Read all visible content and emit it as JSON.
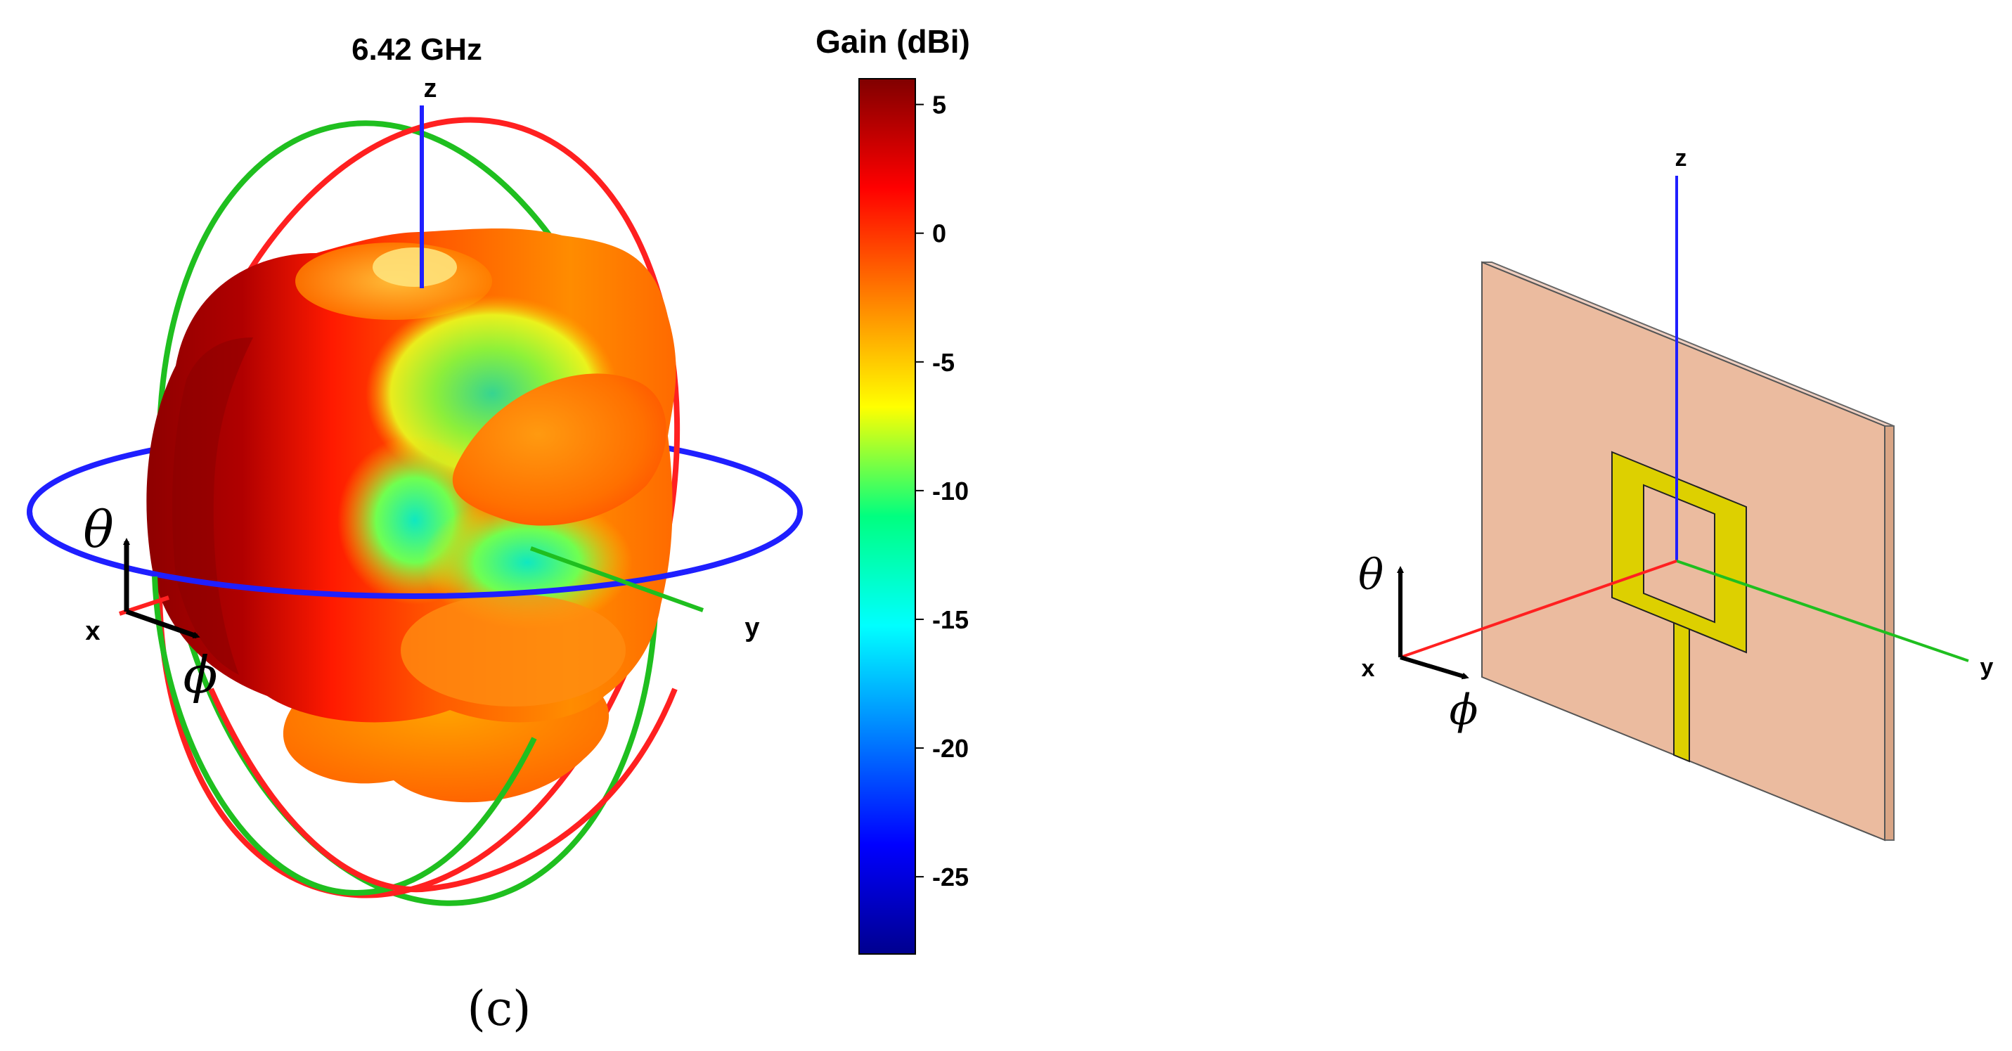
{
  "left_panel": {
    "frequency_label": "6.42 GHz",
    "axis_labels": {
      "x": "x",
      "y": "y",
      "z": "z"
    },
    "theta_symbol": "θ",
    "phi_symbol": "ϕ",
    "panel_label": "(c)",
    "colorbar": {
      "title": "Gain (dBi)",
      "ticks": [
        "5",
        "0",
        "-5",
        "-10",
        "-15",
        "-20",
        "-25"
      ],
      "range": [
        -28,
        6
      ],
      "colormap": "jet"
    }
  },
  "right_panel": {
    "axis_labels": {
      "x": "x",
      "y": "y",
      "z": "z"
    },
    "theta_symbol": "θ",
    "phi_symbol": "ϕ"
  },
  "colors": {
    "x_axis": "#ff2020",
    "y_axis": "#1fbf1f",
    "z_axis": "#1f1fff",
    "substrate": "#ebbb9f",
    "patch": "#ddd000"
  }
}
